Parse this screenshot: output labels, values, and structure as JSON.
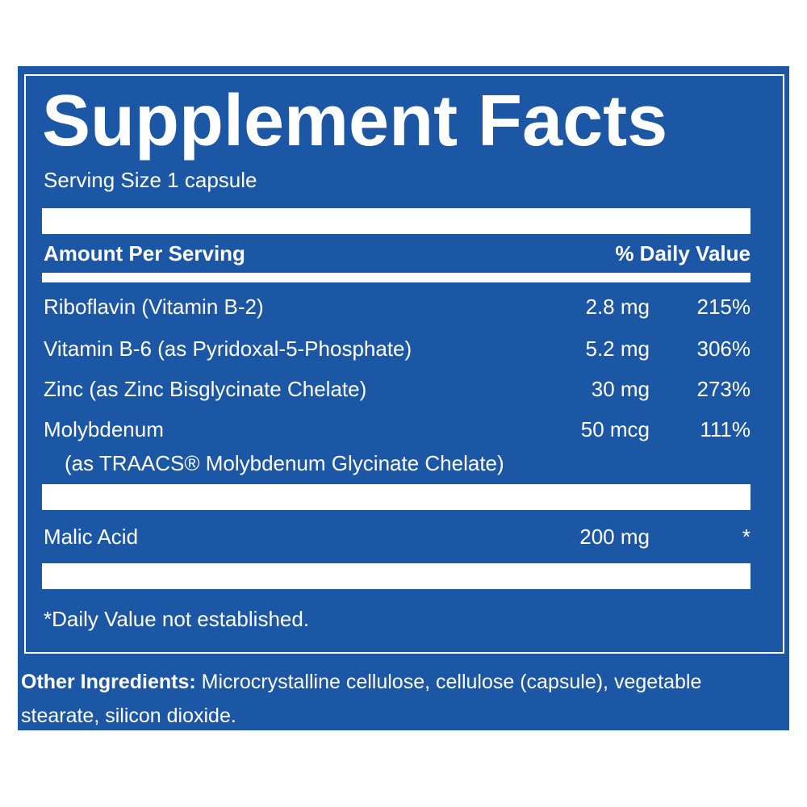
{
  "title": "Supplement Facts",
  "serving_size": "Serving Size 1 capsule",
  "header": {
    "amount": "Amount Per Serving",
    "daily_value": "% Daily Value"
  },
  "rows": [
    {
      "name": "Riboflavin (Vitamin B-2)",
      "amount": "2.8 mg",
      "daily_value": "215%"
    },
    {
      "name": "Vitamin B-6 (as Pyridoxal-5-Phosphate)",
      "amount": "5.2 mg",
      "daily_value": "306%"
    },
    {
      "name": "Zinc (as Zinc Bisglycinate Chelate)",
      "amount": "30 mg",
      "daily_value": "273%"
    },
    {
      "name": "Molybdenum",
      "detail": "(as TRAACS® Molybdenum Glycinate Chelate)",
      "amount": "50 mcg",
      "daily_value": "111%"
    },
    {
      "name": "Malic Acid",
      "amount": "200 mg",
      "daily_value": "*"
    }
  ],
  "footnote": "*Daily Value not established.",
  "other_ingredients": {
    "label": "Other Ingredients:",
    "text": "Microcrystalline cellulose, cellulose (capsule), vegetable stearate, silicon dioxide."
  }
}
